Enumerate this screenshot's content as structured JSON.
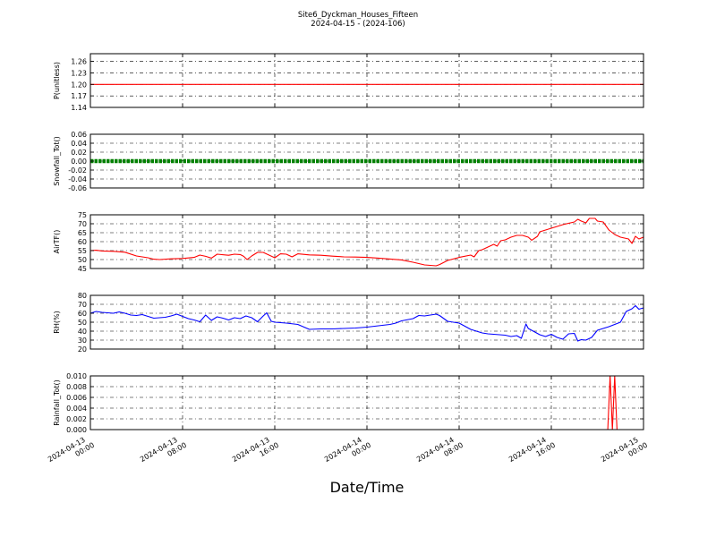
{
  "figure": {
    "title": "Site6_Dyckman_Houses_Fifteen",
    "subtitle": "2024-04-15 - (2024-106)",
    "xlabel": "Date/Time"
  },
  "chart_data": [
    {
      "type": "line",
      "ylabel": "P(unitless)",
      "ylim": [
        1.14,
        1.28
      ],
      "yticks": [
        "1.14",
        "1.17",
        "1.20",
        "1.23",
        "1.26"
      ],
      "grid": true,
      "color": "#ff0000",
      "points": [
        [
          0,
          1.2
        ],
        [
          48,
          1.2
        ]
      ]
    },
    {
      "type": "scatter",
      "ylabel": "Snowfall_Tot()",
      "ylim": [
        -0.06,
        0.06
      ],
      "yticks": [
        "-0.06",
        "-0.04",
        "-0.02",
        "0.00",
        "0.02",
        "0.04",
        "0.06"
      ],
      "grid": true,
      "color": "#008000",
      "points": [
        [
          0,
          0.0
        ],
        [
          48,
          0.0
        ]
      ]
    },
    {
      "type": "line",
      "ylabel": "AirTF()",
      "ylim": [
        45,
        75
      ],
      "yticks": [
        "45",
        "50",
        "55",
        "60",
        "65",
        "70",
        "75"
      ],
      "grid": true,
      "color": "#ff0000",
      "points": [
        [
          0,
          55
        ],
        [
          0.5,
          55.2
        ],
        [
          1,
          54.8
        ],
        [
          2,
          54.6
        ],
        [
          3,
          54.1
        ],
        [
          4,
          52
        ],
        [
          5,
          51
        ],
        [
          5.5,
          50.2
        ],
        [
          6,
          50
        ],
        [
          7,
          50.4
        ],
        [
          8,
          50.6
        ],
        [
          9,
          51.2
        ],
        [
          9.5,
          52.5
        ],
        [
          10,
          51.8
        ],
        [
          10.5,
          50.8
        ],
        [
          11,
          53
        ],
        [
          12,
          52.4
        ],
        [
          12.5,
          53
        ],
        [
          13,
          52.8
        ],
        [
          13.3,
          51.8
        ],
        [
          13.6,
          50
        ],
        [
          14,
          52
        ],
        [
          14.5,
          54
        ],
        [
          15,
          54
        ],
        [
          15.5,
          52.5
        ],
        [
          16,
          51
        ],
        [
          16.5,
          53.2
        ],
        [
          17,
          53
        ],
        [
          17.5,
          51.5
        ],
        [
          18,
          53.2
        ],
        [
          19,
          52.6
        ],
        [
          20,
          52.4
        ],
        [
          21,
          51.9
        ],
        [
          22,
          51.5
        ],
        [
          23,
          51.4
        ],
        [
          24,
          51.2
        ],
        [
          25,
          50.8
        ],
        [
          26,
          50.3
        ],
        [
          27,
          49.8
        ],
        [
          28,
          48.5
        ],
        [
          29,
          47
        ],
        [
          30,
          46.5
        ],
        [
          30.3,
          47.2
        ],
        [
          31,
          49.5
        ],
        [
          32,
          51.2
        ],
        [
          33,
          52.5
        ],
        [
          33.3,
          51.5
        ],
        [
          33.7,
          55
        ],
        [
          34,
          55.5
        ],
        [
          35,
          58.5
        ],
        [
          35.3,
          57.5
        ],
        [
          35.6,
          60.5
        ],
        [
          36,
          61
        ],
        [
          36.5,
          62.5
        ],
        [
          37,
          63.5
        ],
        [
          37.5,
          63.5
        ],
        [
          38,
          62.5
        ],
        [
          38.3,
          60.8
        ],
        [
          38.8,
          63
        ],
        [
          39,
          65.5
        ],
        [
          40,
          67.5
        ],
        [
          41,
          69.5
        ],
        [
          42,
          71
        ],
        [
          42.3,
          72.5
        ],
        [
          42.6,
          71.5
        ],
        [
          43,
          70.5
        ],
        [
          43.3,
          73
        ],
        [
          43.8,
          73
        ],
        [
          44,
          71.5
        ],
        [
          44.5,
          71
        ],
        [
          45,
          66.5
        ],
        [
          45.5,
          64
        ],
        [
          46,
          62.5
        ],
        [
          46.7,
          61.5
        ],
        [
          47,
          59
        ],
        [
          47.3,
          63
        ],
        [
          47.6,
          61.5
        ],
        [
          48,
          62.5
        ]
      ]
    },
    {
      "type": "line",
      "ylabel": "RH(%)",
      "ylim": [
        20,
        80
      ],
      "yticks": [
        "20",
        "30",
        "40",
        "50",
        "60",
        "70",
        "80"
      ],
      "grid": true,
      "color": "#0000ff",
      "points": [
        [
          0,
          60
        ],
        [
          0.5,
          62
        ],
        [
          1,
          61
        ],
        [
          2,
          60
        ],
        [
          2.5,
          61.5
        ],
        [
          3,
          60
        ],
        [
          3.5,
          58
        ],
        [
          4,
          57.5
        ],
        [
          4.5,
          58.5
        ],
        [
          5,
          56.5
        ],
        [
          5.5,
          54.5
        ],
        [
          6,
          55
        ],
        [
          6.5,
          55.5
        ],
        [
          7,
          57
        ],
        [
          7.5,
          59
        ],
        [
          8,
          56.5
        ],
        [
          8.5,
          54
        ],
        [
          9,
          52.5
        ],
        [
          9.5,
          50.5
        ],
        [
          10,
          58
        ],
        [
          10.5,
          52
        ],
        [
          11,
          56
        ],
        [
          11.5,
          54.5
        ],
        [
          12,
          52.5
        ],
        [
          12.5,
          55
        ],
        [
          13,
          54
        ],
        [
          13.5,
          57
        ],
        [
          14,
          55
        ],
        [
          14.5,
          50.5
        ],
        [
          15,
          57
        ],
        [
          15.3,
          60.5
        ],
        [
          15.7,
          51
        ],
        [
          16,
          50
        ],
        [
          17,
          49
        ],
        [
          18,
          47.5
        ],
        [
          19,
          42
        ],
        [
          20,
          42.5
        ],
        [
          21,
          42.5
        ],
        [
          22,
          43
        ],
        [
          23,
          43.5
        ],
        [
          24,
          44.5
        ],
        [
          25,
          46
        ],
        [
          26,
          47.5
        ],
        [
          26.5,
          49
        ],
        [
          27,
          51.5
        ],
        [
          28,
          54
        ],
        [
          28.5,
          57.5
        ],
        [
          29,
          57
        ],
        [
          29.5,
          58
        ],
        [
          30,
          59
        ],
        [
          30.3,
          57.5
        ],
        [
          31,
          51
        ],
        [
          32,
          49
        ],
        [
          33,
          42
        ],
        [
          34,
          38
        ],
        [
          34.5,
          37
        ],
        [
          35,
          36.5
        ],
        [
          36,
          35.5
        ],
        [
          36.5,
          34
        ],
        [
          37,
          35
        ],
        [
          37.4,
          32
        ],
        [
          37.8,
          48
        ],
        [
          38,
          43
        ],
        [
          39,
          36
        ],
        [
          39.5,
          34
        ],
        [
          40,
          36.5
        ],
        [
          40.5,
          33
        ],
        [
          41,
          31
        ],
        [
          41.5,
          37
        ],
        [
          42,
          37.5
        ],
        [
          42.3,
          29
        ],
        [
          42.6,
          30.5
        ],
        [
          43,
          30
        ],
        [
          43.5,
          33
        ],
        [
          44,
          41
        ],
        [
          45,
          45
        ],
        [
          45.5,
          47.5
        ],
        [
          46,
          50
        ],
        [
          46.5,
          62
        ],
        [
          47,
          65
        ],
        [
          47.3,
          68.5
        ],
        [
          47.6,
          64.5
        ],
        [
          48,
          66
        ]
      ]
    },
    {
      "type": "line",
      "ylabel": "Rainfall_Tot()",
      "ylim": [
        0,
        0.01
      ],
      "yticks": [
        "0.000",
        "0.002",
        "0.004",
        "0.006",
        "0.008",
        "0.010"
      ],
      "grid": true,
      "color": "#ff0000",
      "points": [
        [
          0,
          0
        ],
        [
          44.9,
          0
        ],
        [
          45.1,
          0.01
        ],
        [
          45.3,
          0
        ],
        [
          45.5,
          0.01
        ],
        [
          45.7,
          0
        ],
        [
          48,
          0
        ]
      ]
    }
  ],
  "xticks": [
    [
      "2024-04-13",
      "00:00"
    ],
    [
      "2024-04-13",
      "08:00"
    ],
    [
      "2024-04-13",
      "16:00"
    ],
    [
      "2024-04-14",
      "00:00"
    ],
    [
      "2024-04-14",
      "08:00"
    ],
    [
      "2024-04-14",
      "16:00"
    ],
    [
      "2024-04-15",
      "00:00"
    ]
  ]
}
